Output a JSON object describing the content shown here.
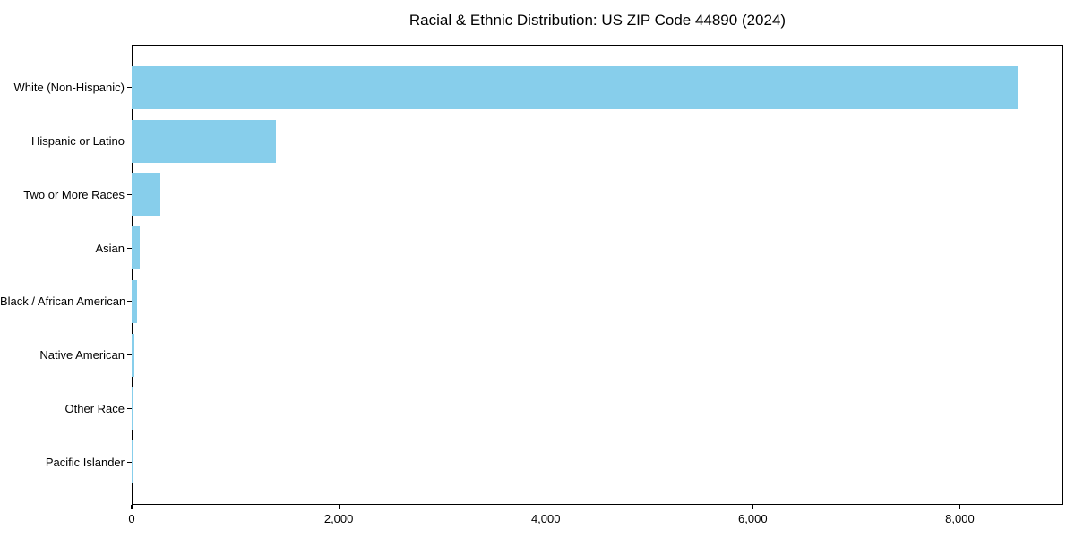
{
  "figure": {
    "background": "#ffffff"
  },
  "chart_data": {
    "type": "bar",
    "orientation": "horizontal",
    "title": "Racial & Ethnic Distribution: US ZIP Code 44890 (2024)",
    "xlabel": "",
    "ylabel": "",
    "grid": false,
    "legend": null,
    "bar_color": "#87CEEB",
    "axis_color": "#000000",
    "categories": [
      "White (Non-Hispanic)",
      "Hispanic or Latino",
      "Two or More Races",
      "Asian",
      "Black / African American",
      "Native American",
      "Other Race",
      "Pacific Islander"
    ],
    "values": [
      8560,
      1390,
      277,
      78,
      55,
      29,
      8,
      2
    ],
    "xlim": [
      0,
      9000
    ],
    "x_ticks": [
      {
        "value": 0,
        "label": "0"
      },
      {
        "value": 2000,
        "label": "2,000"
      },
      {
        "value": 4000,
        "label": "4,000"
      },
      {
        "value": 6000,
        "label": "6,000"
      },
      {
        "value": 8000,
        "label": "8,000"
      }
    ]
  }
}
